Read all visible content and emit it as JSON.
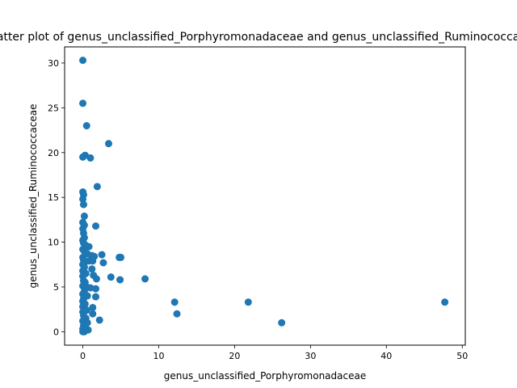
{
  "chart_data": {
    "type": "scatter",
    "title": "Scatter plot of genus_unclassified_Porphyromonadaceae and genus_unclassified_Ruminococcaceae",
    "xlabel": "genus_unclassified_Porphyromonadaceae",
    "ylabel": "genus_unclassified_Ruminococcaceae",
    "xlim": [
      -2.4,
      50.4
    ],
    "ylim": [
      -1.5,
      31.8
    ],
    "xticks": [
      0,
      10,
      20,
      30,
      40,
      50
    ],
    "yticks": [
      0,
      5,
      10,
      15,
      20,
      25,
      30
    ],
    "grid": false,
    "marker_color": "#1f77b4",
    "points": [
      [
        0.0,
        30.3
      ],
      [
        0.0,
        25.5
      ],
      [
        0.5,
        23.0
      ],
      [
        3.4,
        21.0
      ],
      [
        0.0,
        19.5
      ],
      [
        0.3,
        19.7
      ],
      [
        1.0,
        19.4
      ],
      [
        1.9,
        16.2
      ],
      [
        0.0,
        15.6
      ],
      [
        0.1,
        15.3
      ],
      [
        0.0,
        14.8
      ],
      [
        0.1,
        14.2
      ],
      [
        0.2,
        12.9
      ],
      [
        0.0,
        12.2
      ],
      [
        0.2,
        11.9
      ],
      [
        1.7,
        11.8
      ],
      [
        0.0,
        11.5
      ],
      [
        0.1,
        11.0
      ],
      [
        0.2,
        10.5
      ],
      [
        0.0,
        10.2
      ],
      [
        0.1,
        9.9
      ],
      [
        0.3,
        9.7
      ],
      [
        0.8,
        9.5
      ],
      [
        0.0,
        9.2
      ],
      [
        0.2,
        9.0
      ],
      [
        0.4,
        8.8
      ],
      [
        0.6,
        8.7
      ],
      [
        1.2,
        8.5
      ],
      [
        1.5,
        8.4
      ],
      [
        2.5,
        8.6
      ],
      [
        4.8,
        8.3
      ],
      [
        5.0,
        8.3
      ],
      [
        0.0,
        8.3
      ],
      [
        0.1,
        8.0
      ],
      [
        0.3,
        7.8
      ],
      [
        0.8,
        7.9
      ],
      [
        1.3,
        7.9
      ],
      [
        2.7,
        7.7
      ],
      [
        0.0,
        7.5
      ],
      [
        0.2,
        7.2
      ],
      [
        1.2,
        7.0
      ],
      [
        0.0,
        6.8
      ],
      [
        0.4,
        6.5
      ],
      [
        1.4,
        6.3
      ],
      [
        3.7,
        6.1
      ],
      [
        0.0,
        6.2
      ],
      [
        1.8,
        5.9
      ],
      [
        4.9,
        5.8
      ],
      [
        8.2,
        5.9
      ],
      [
        0.1,
        5.7
      ],
      [
        0.3,
        5.5
      ],
      [
        0.0,
        5.1
      ],
      [
        0.5,
        5.0
      ],
      [
        1.0,
        4.9
      ],
      [
        1.7,
        4.8
      ],
      [
        0.2,
        4.5
      ],
      [
        0.0,
        4.2
      ],
      [
        0.6,
        4.0
      ],
      [
        1.7,
        3.9
      ],
      [
        0.1,
        3.7
      ],
      [
        12.1,
        3.3
      ],
      [
        21.8,
        3.3
      ],
      [
        47.7,
        3.3
      ],
      [
        0.0,
        3.4
      ],
      [
        0.3,
        3.1
      ],
      [
        0.0,
        2.8
      ],
      [
        1.3,
        2.7
      ],
      [
        0.5,
        2.4
      ],
      [
        12.4,
        2.0
      ],
      [
        1.3,
        2.0
      ],
      [
        0.0,
        2.2
      ],
      [
        0.1,
        1.8
      ],
      [
        0.4,
        1.5
      ],
      [
        2.2,
        1.3
      ],
      [
        0.0,
        1.2
      ],
      [
        0.6,
        1.0
      ],
      [
        26.2,
        1.0
      ],
      [
        0.1,
        0.7
      ],
      [
        0.3,
        0.5
      ],
      [
        0.0,
        0.3
      ],
      [
        0.7,
        0.2
      ],
      [
        0.1,
        0.1
      ],
      [
        0.0,
        0.0
      ],
      [
        0.2,
        0.0
      ]
    ]
  }
}
